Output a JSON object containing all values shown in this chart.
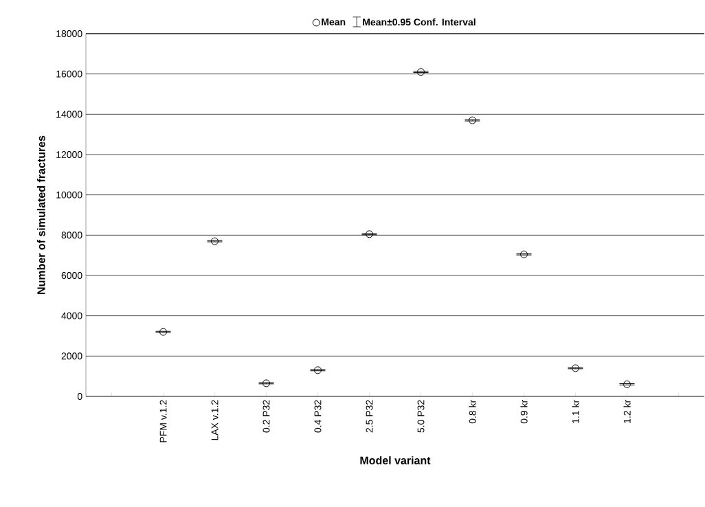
{
  "chart_data": {
    "type": "scatter",
    "xlabel": "Model variant",
    "ylabel": "Number of simulated fractures",
    "categories": [
      null,
      "PFM v.1.2",
      "LAX v.1.2",
      "0.2 P32",
      "0.4 P32",
      "2.5 P32",
      "5.0 P32",
      "0.8 kr",
      "0.9 kr",
      "1.1 kr",
      "1.2 kr",
      null
    ],
    "series": [
      {
        "name": "Mean",
        "color": "#000000",
        "values": [
          null,
          3200,
          7700,
          650,
          1300,
          8050,
          16100,
          13700,
          7050,
          1400,
          600,
          null
        ],
        "errors": [
          null,
          30,
          30,
          30,
          30,
          30,
          30,
          30,
          30,
          30,
          30,
          null
        ]
      }
    ],
    "annotations": [
      "Mean±0.95 Conf. Interval"
    ],
    "ylim": [
      0,
      18000
    ],
    "yticks": [
      0,
      2000,
      4000,
      6000,
      8000,
      10000,
      12000,
      14000,
      16000,
      18000
    ],
    "grid": "y",
    "legend": "top",
    "marker": "circle"
  }
}
